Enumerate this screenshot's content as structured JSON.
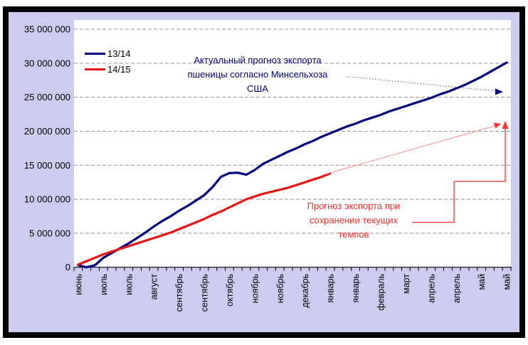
{
  "colors": {
    "page_bg": "#ffffff",
    "frame_border": "#000000",
    "chart_bg": "#ccccf0",
    "plot_bg": "#ffffff",
    "gridline": "#909090",
    "axis": "#000000",
    "tick_label": "#000000",
    "navy_series": "#00007f",
    "red_series": "#e81313",
    "usda_arrow": "#5a5a9e",
    "pace_trend_arrow": "#ff8a8a",
    "pace_callout": "#ff3232"
  },
  "chart_data": {
    "type": "line",
    "title": "",
    "grid": "horizontal-dashed",
    "legend_position": "top-left-inside",
    "x_axis": {
      "total_points": 52,
      "points_per_label": 3,
      "tick_labels": [
        "июнь",
        "июль",
        "июль",
        "август",
        "сентябрь",
        "сентябрь",
        "октябрь",
        "ноябрь",
        "ноябрь",
        "декабрь",
        "январь",
        "январь",
        "февраль",
        "март",
        "апрель",
        "апрель",
        "май",
        "май"
      ]
    },
    "y_axis": {
      "min": 0,
      "max": 35000000,
      "step": 5000000,
      "tick_labels": [
        "35 000 000",
        "30 000 000",
        "25 000 000",
        "20 000 000",
        "15 000 000",
        "10 000 000",
        "5 000 000",
        "0"
      ]
    },
    "series": [
      {
        "name": "13/14",
        "color": "#00007f",
        "values": [
          300000,
          0,
          300000,
          1400000,
          2100000,
          2800000,
          3500000,
          4300000,
          5100000,
          6000000,
          6800000,
          7500000,
          8300000,
          9000000,
          9800000,
          10600000,
          11800000,
          13300000,
          13850000,
          13900000,
          13600000,
          14300000,
          15200000,
          15800000,
          16400000,
          17000000,
          17500000,
          18100000,
          18600000,
          19200000,
          19700000,
          20200000,
          20700000,
          21100000,
          21600000,
          22000000,
          22400000,
          22900000,
          23300000,
          23700000,
          24100000,
          24500000,
          24900000,
          25400000,
          25800000,
          26300000,
          26800000,
          27400000,
          28000000,
          28700000,
          29400000,
          30100000
        ]
      },
      {
        "name": "14/15",
        "color": "#e81313",
        "values": [
          400000,
          900000,
          1400000,
          1900000,
          2300000,
          2700000,
          3100000,
          3500000,
          3900000,
          4300000,
          4700000,
          5100000,
          5600000,
          6100000,
          6600000,
          7100000,
          7700000,
          8200000,
          8800000,
          9400000,
          10000000,
          10400000,
          10800000,
          11100000,
          11400000,
          11700000,
          12100000,
          12500000,
          12900000,
          13300000,
          13800000
        ]
      }
    ],
    "annotations": {
      "usda": {
        "line1": "Актуальный прогноз экспорта",
        "line2": "пшеницы согласно Минсельхоза",
        "line3": "США",
        "color": "#00007f",
        "arrow_style": "dotted",
        "arrow_points_to_value": 25800000
      },
      "pace": {
        "line1": "Прогноз экспорта при",
        "line2": "сохранении текущих",
        "line3": "темпов",
        "color": "#ff2e2e",
        "arrow_style": "elbow-callout",
        "arrow_points_to_value": 21200000
      }
    }
  },
  "legend": {
    "items": [
      {
        "label": "13/14",
        "color": "#00007f"
      },
      {
        "label": "14/15",
        "color": "#e81313"
      }
    ]
  }
}
